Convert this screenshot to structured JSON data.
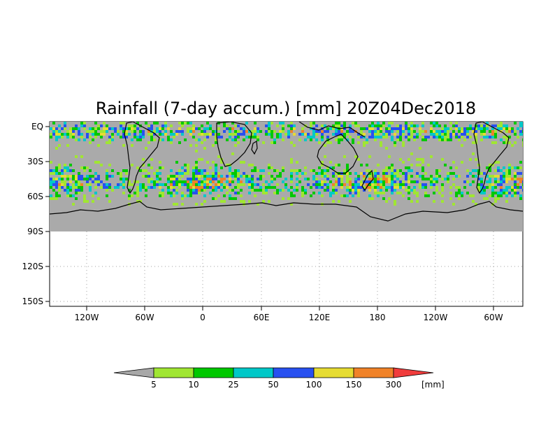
{
  "title": "Rainfall (7-day accum.) [mm] 20Z04Dec2018",
  "y_ticks": [
    "EQ",
    "30S",
    "60S",
    "90S",
    "120S",
    "150S"
  ],
  "x_ticks": [
    "120W",
    "60W",
    "0",
    "60E",
    "120E",
    "180",
    "120W",
    "60W"
  ],
  "colorbar": {
    "labels": [
      "5",
      "10",
      "25",
      "50",
      "100",
      "150",
      "300"
    ],
    "unit": "[mm]",
    "colors": {
      "below": "#a8a8a8",
      "bins": [
        "#a0e632",
        "#00c800",
        "#00c8c8",
        "#2850f0",
        "#e6dc32",
        "#f08228"
      ],
      "above": "#f03c3c"
    }
  },
  "map": {
    "ocean_no_rain_color": "#aaaaaa",
    "coastline_color": "#000000",
    "grid_style": "dotted"
  }
}
